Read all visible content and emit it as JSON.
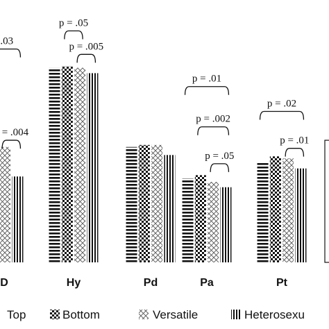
{
  "chart_data": {
    "type": "bar",
    "categories": [
      "D",
      "Hy",
      "Pd",
      "Pa",
      "Pt",
      ""
    ],
    "series": [
      {
        "name": "Top",
        "pattern": "horizontal-stripes",
        "values": [
          290,
          290,
          172,
          125,
          148,
          0
        ]
      },
      {
        "name": "Bottom",
        "pattern": "checker",
        "values": [
          0,
          292,
          175,
          130,
          158,
          0
        ]
      },
      {
        "name": "Versatile",
        "pattern": "crosshatch",
        "values": [
          172,
          290,
          175,
          120,
          155,
          0
        ]
      },
      {
        "name": "Heterosexual",
        "pattern": "vertical-stripes",
        "values": [
          128,
          282,
          160,
          112,
          140,
          0
        ]
      }
    ],
    "extra_bar": {
      "category_index": 5,
      "value": 182
    },
    "ylim": [
      0,
      300
    ],
    "legend_position": "bottom",
    "annotations": [
      {
        "text": "p = .03",
        "category": 0,
        "from_series": 0,
        "to_series": 3,
        "top_value": 318
      },
      {
        "text": "p = .004",
        "category": 0,
        "from_series": 2,
        "to_series": 3,
        "top_value": 182
      },
      {
        "text": "p = .05",
        "category": 1,
        "from_series": 1,
        "to_series": 2,
        "top_value": 345
      },
      {
        "text": "p = .005",
        "category": 1,
        "from_series": 2,
        "to_series": 3,
        "top_value": 310
      },
      {
        "text": "p = .01",
        "category": 3,
        "from_series": 0,
        "to_series": 3,
        "top_value": 262
      },
      {
        "text": "p = .002",
        "category": 3,
        "from_series": 1,
        "to_series": 3,
        "top_value": 202
      },
      {
        "text": "p = .05",
        "category": 3,
        "from_series": 2,
        "to_series": 3,
        "top_value": 147
      },
      {
        "text": "p = .02",
        "category": 4,
        "from_series": 0,
        "to_series": 3,
        "top_value": 225
      },
      {
        "text": "p = .01",
        "category": 4,
        "from_series": 2,
        "to_series": 3,
        "top_value": 170
      }
    ],
    "legend": [
      "Top",
      "Bottom",
      "Versatile",
      "Heterosexu"
    ]
  },
  "colors": {
    "ink": "#111111",
    "background": "#ffffff"
  }
}
